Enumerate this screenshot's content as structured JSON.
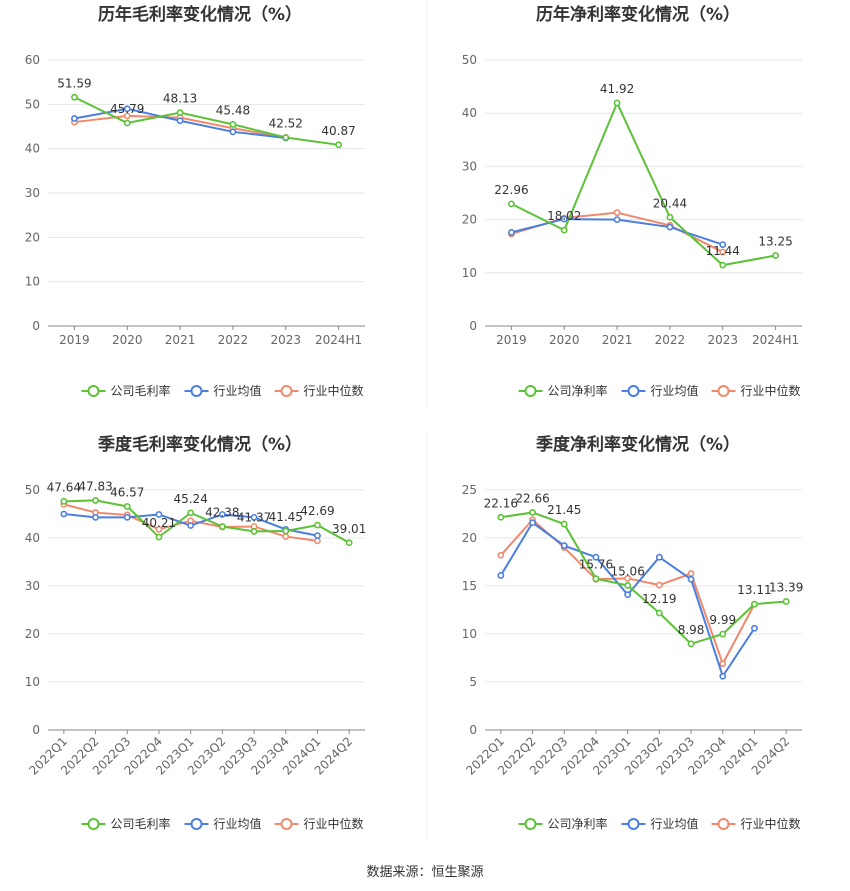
{
  "source": "数据来源：恒生聚源",
  "colors": {
    "company": "#5bc236",
    "avg": "#4a7fe0",
    "median": "#f0896c"
  },
  "chart_data": [
    {
      "type": "line",
      "title": "历年毛利率变化情况（%）",
      "categories": [
        "2019",
        "2020",
        "2021",
        "2022",
        "2023",
        "2024H1"
      ],
      "ylim": [
        0,
        60
      ],
      "yticks": [
        0,
        10,
        20,
        30,
        40,
        50,
        60
      ],
      "series": [
        {
          "name": "公司毛利率",
          "role": "company",
          "values": [
            51.59,
            45.79,
            48.13,
            45.48,
            42.52,
            40.87
          ],
          "labels": [
            "51.59",
            "45.79",
            "48.13",
            "45.48",
            "42.52",
            "40.87"
          ]
        },
        {
          "name": "行业均值",
          "role": "avg",
          "values": [
            46.8,
            49.0,
            46.3,
            43.8,
            42.4,
            null
          ]
        },
        {
          "name": "行业中位数",
          "role": "median",
          "values": [
            46.0,
            47.4,
            47.0,
            44.6,
            42.5,
            null
          ]
        }
      ]
    },
    {
      "type": "line",
      "title": "历年净利率变化情况（%）",
      "categories": [
        "2019",
        "2020",
        "2021",
        "2022",
        "2023",
        "2024H1"
      ],
      "ylim": [
        0,
        50
      ],
      "yticks": [
        0,
        10,
        20,
        30,
        40,
        50
      ],
      "series": [
        {
          "name": "公司净利率",
          "role": "company",
          "values": [
            22.96,
            18.02,
            41.92,
            20.44,
            11.44,
            13.25
          ],
          "labels": [
            "22.96",
            "18.02",
            "41.92",
            "20.44",
            "11.44",
            "13.25"
          ]
        },
        {
          "name": "行业均值",
          "role": "avg",
          "values": [
            17.6,
            20.1,
            20.0,
            18.6,
            15.3,
            null
          ]
        },
        {
          "name": "行业中位数",
          "role": "median",
          "values": [
            17.3,
            20.3,
            21.3,
            18.9,
            13.9,
            null
          ]
        }
      ]
    },
    {
      "type": "line",
      "title": "季度毛利率变化情况（%）",
      "categories": [
        "2022Q1",
        "2022Q2",
        "2022Q3",
        "2022Q4",
        "2023Q1",
        "2023Q2",
        "2023Q3",
        "2023Q4",
        "2024Q1",
        "2024Q2"
      ],
      "ylim": [
        0,
        50
      ],
      "yticks": [
        0,
        10,
        20,
        30,
        40,
        50
      ],
      "rotated_ticks": true,
      "series": [
        {
          "name": "公司毛利率",
          "role": "company",
          "values": [
            47.64,
            47.83,
            46.57,
            40.21,
            45.24,
            42.38,
            41.37,
            41.45,
            42.69,
            39.01
          ],
          "labels": [
            "47.64",
            "47.83",
            "46.57",
            "40.21",
            "45.24",
            "42.38",
            "41.37",
            "41.45",
            "42.69",
            "39.01"
          ]
        },
        {
          "name": "行业均值",
          "role": "avg",
          "values": [
            45.0,
            44.3,
            44.3,
            44.9,
            42.6,
            44.9,
            44.3,
            41.8,
            40.5,
            null
          ]
        },
        {
          "name": "行业中位数",
          "role": "median",
          "values": [
            47.0,
            45.3,
            44.8,
            41.8,
            43.6,
            42.3,
            42.4,
            40.3,
            39.4,
            null
          ]
        }
      ]
    },
    {
      "type": "line",
      "title": "季度净利率变化情况（%）",
      "categories": [
        "2022Q1",
        "2022Q2",
        "2022Q3",
        "2022Q4",
        "2023Q1",
        "2023Q2",
        "2023Q3",
        "2023Q4",
        "2024Q1",
        "2024Q2"
      ],
      "ylim": [
        0,
        25
      ],
      "yticks": [
        0,
        5,
        10,
        15,
        20,
        25
      ],
      "rotated_ticks": true,
      "series": [
        {
          "name": "公司净利率",
          "role": "company",
          "values": [
            22.16,
            22.66,
            21.45,
            15.76,
            15.06,
            12.19,
            8.98,
            9.99,
            13.11,
            13.39
          ],
          "labels": [
            "22.16",
            "22.66",
            "21.45",
            "15.76",
            "15.06",
            "12.19",
            "8.98",
            "9.99",
            "13.11",
            "13.39"
          ]
        },
        {
          "name": "行业均值",
          "role": "avg",
          "values": [
            16.1,
            21.6,
            19.2,
            18.0,
            14.1,
            18.0,
            15.7,
            5.6,
            10.6,
            null
          ]
        },
        {
          "name": "行业中位数",
          "role": "median",
          "values": [
            18.2,
            21.9,
            19.0,
            15.7,
            15.8,
            15.1,
            16.3,
            6.9,
            13.1,
            null
          ]
        }
      ]
    }
  ]
}
